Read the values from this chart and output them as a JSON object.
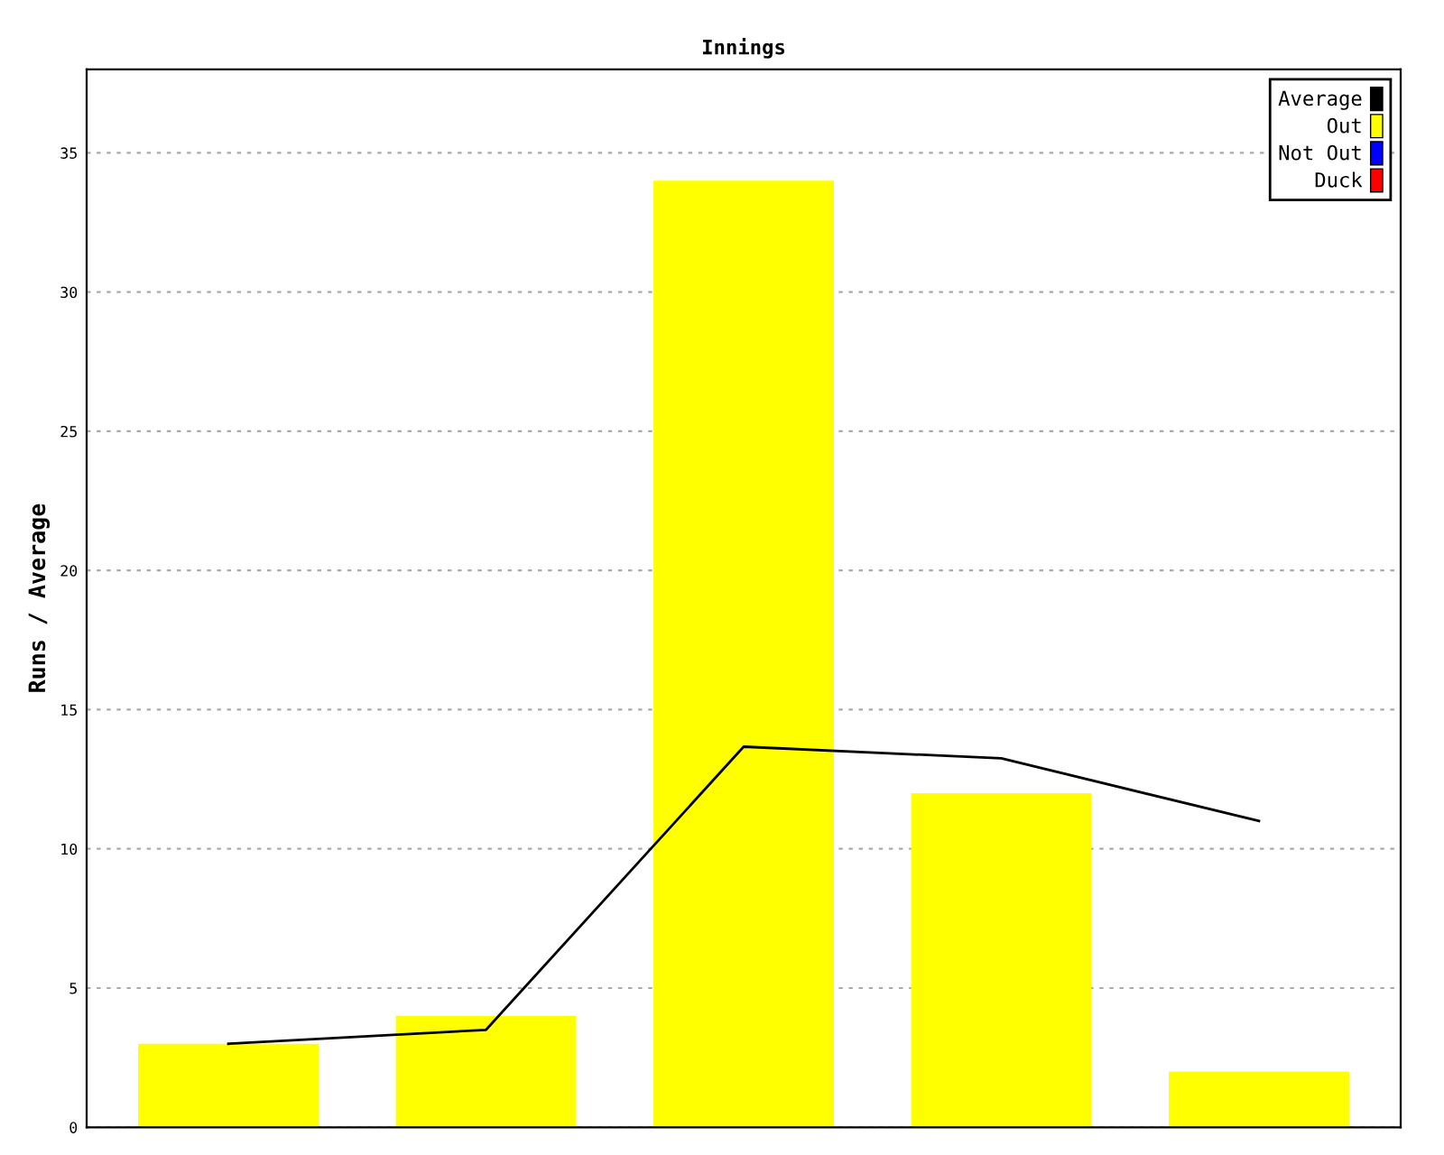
{
  "chart_data": {
    "type": "bar",
    "title": "Innings",
    "ylabel": "Runs / Average",
    "categories": [
      null,
      null,
      null,
      null,
      null
    ],
    "series": [
      {
        "name": "Average",
        "type": "line",
        "color": "#000000",
        "values": [
          3,
          3.5,
          13.67,
          13.25,
          11
        ]
      },
      {
        "name": "Out",
        "color": "#ffff00",
        "values": [
          3,
          4,
          34,
          12,
          2
        ]
      },
      {
        "name": "Not Out",
        "color": "#0000ff",
        "values": [
          0,
          0,
          0,
          0,
          0
        ]
      },
      {
        "name": "Duck",
        "color": "#ff0000",
        "values": [
          0,
          0,
          0,
          0,
          0
        ]
      }
    ],
    "ylim": [
      0,
      38
    ],
    "yticks": [
      0,
      5,
      10,
      15,
      20,
      25,
      30,
      35
    ],
    "grid": "y",
    "legend": "top right",
    "marker": "none"
  }
}
